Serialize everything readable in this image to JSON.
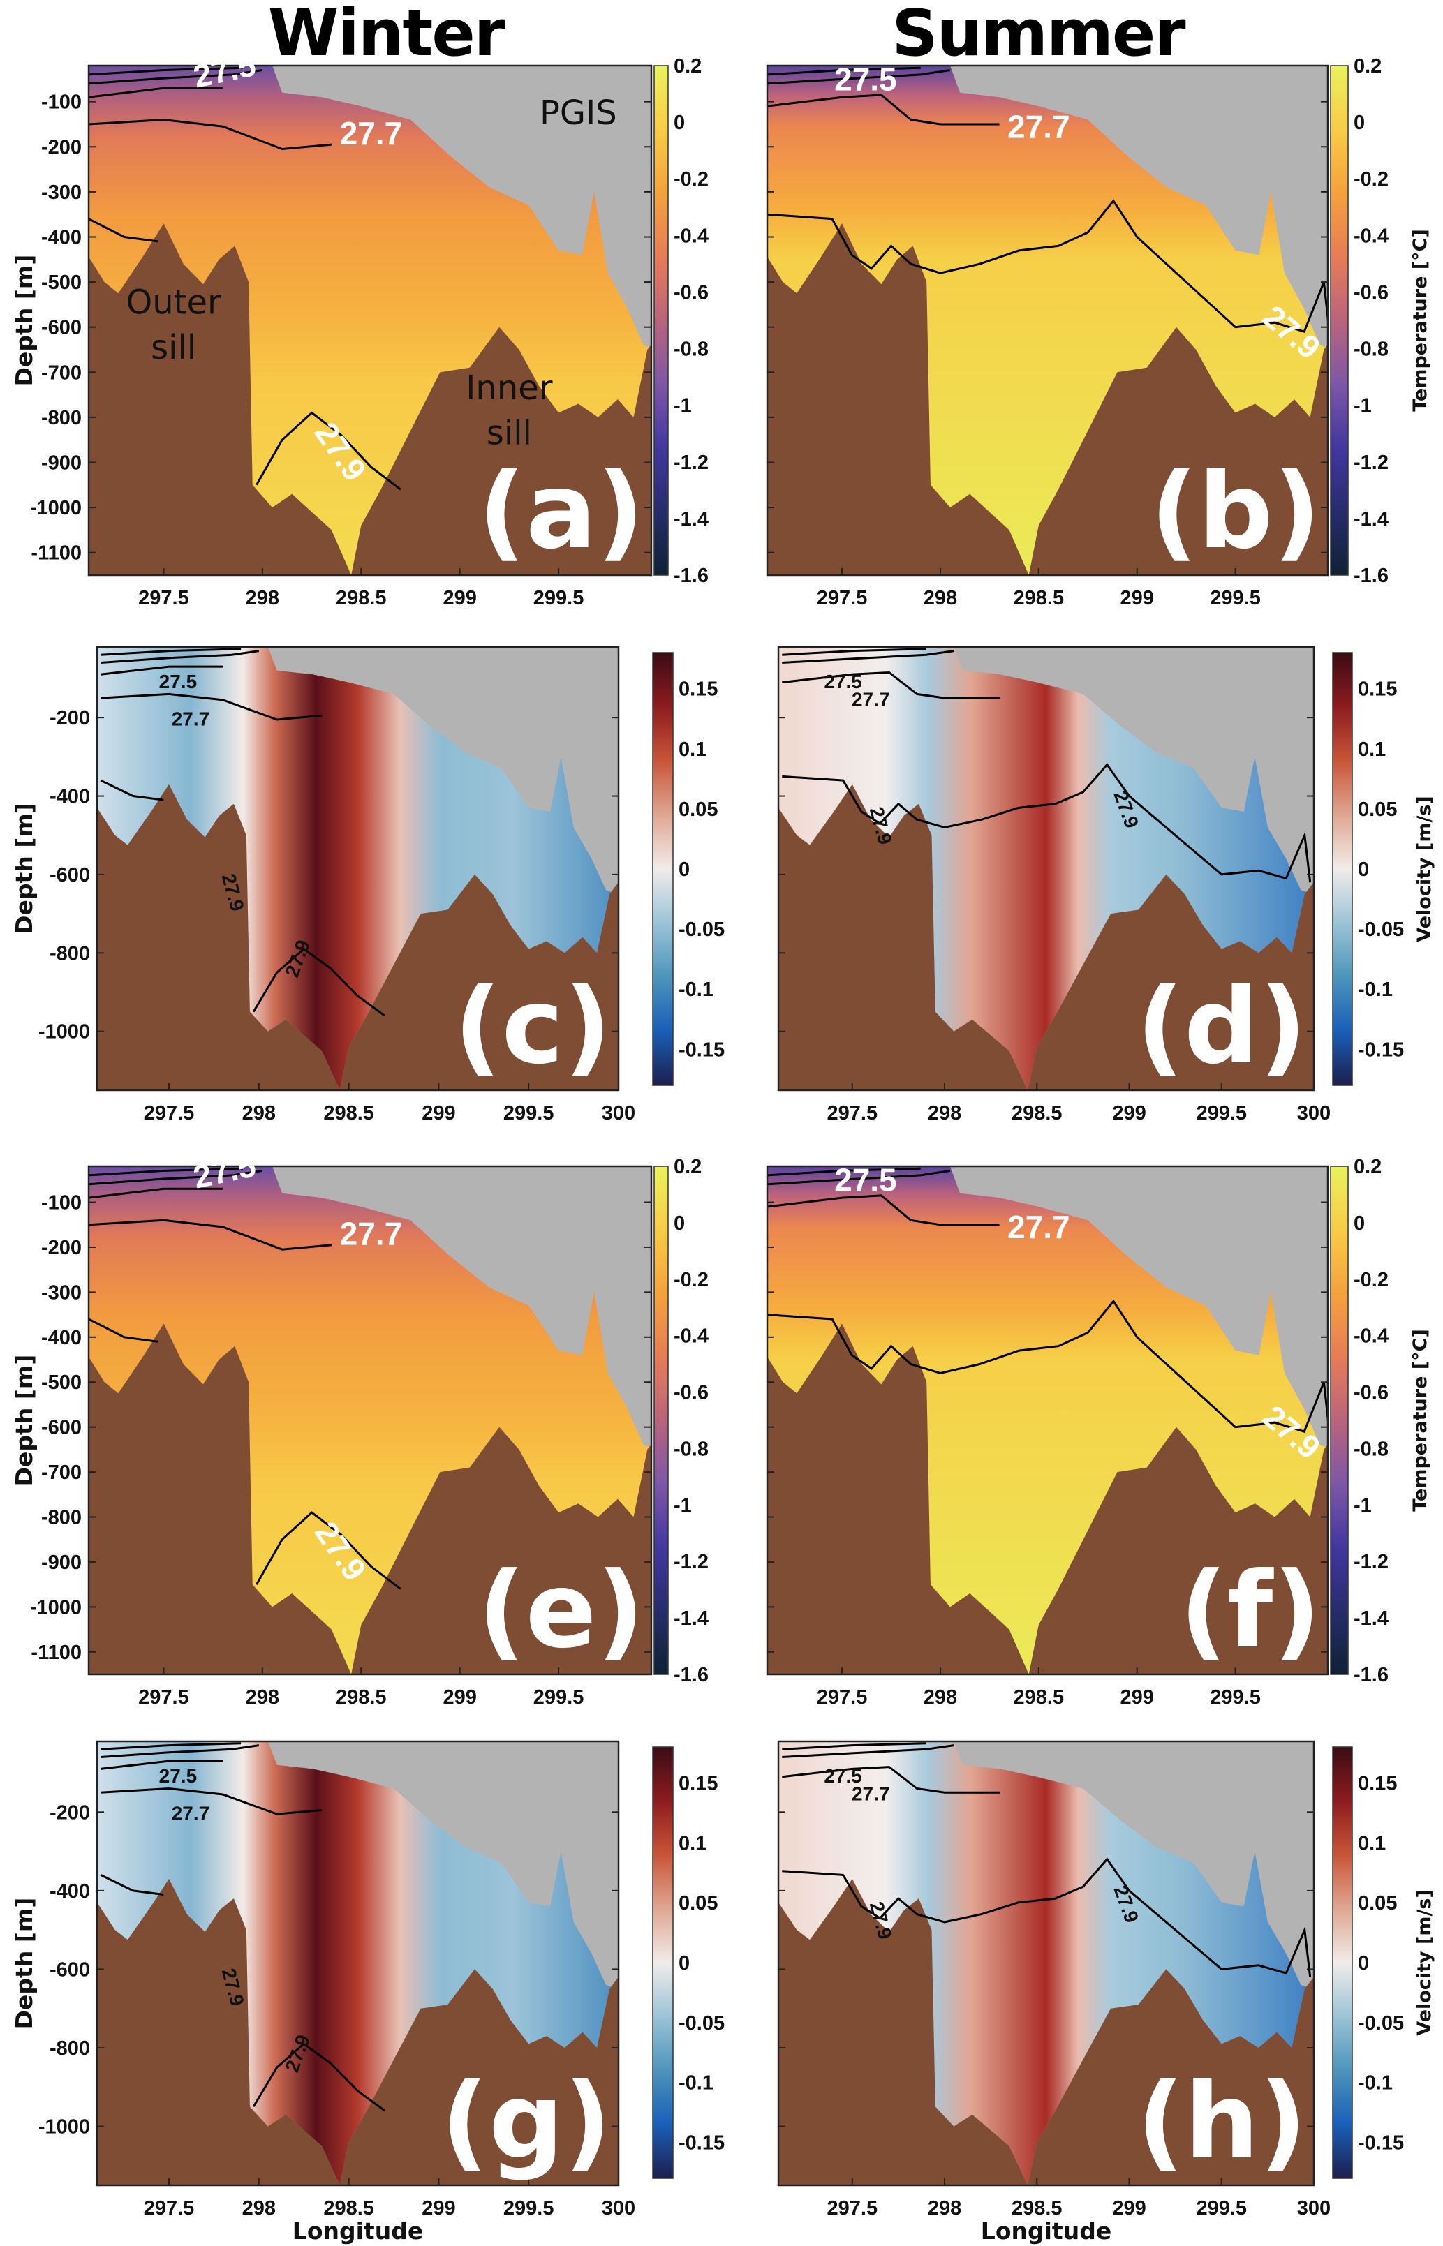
{
  "columns": {
    "winter": "Winter",
    "summer": "Summer"
  },
  "chart_data": [
    {
      "type": "heatmap",
      "panel": "(a)",
      "season": "winter",
      "variable": "temperature",
      "ylabel": "Depth [m]",
      "xlabel": "",
      "colorbar_label": "",
      "clim": [
        -1.6,
        0.2
      ],
      "xlim": [
        297.12,
        299.97
      ],
      "ylim": [
        -1150,
        -20
      ],
      "xticks": [
        "297.5",
        "298",
        "298.5",
        "299",
        "299.5"
      ],
      "yticks": [
        "-100",
        "-200",
        "-300",
        "-400",
        "-500",
        "-600",
        "-700",
        "-800",
        "-900",
        "-1000",
        "-1100"
      ],
      "cbticks": [
        "0.2",
        "0",
        "-0.2",
        "-0.4",
        "-0.6",
        "-0.8",
        "-1",
        "-1.2",
        "-1.4",
        "-1.6"
      ],
      "contour_labels": [
        "27.5",
        "27.7",
        "27.9"
      ],
      "annotations": [
        "PGIS",
        "Outer",
        "sill",
        "Inner",
        "sill"
      ]
    },
    {
      "type": "heatmap",
      "panel": "(b)",
      "season": "summer",
      "variable": "temperature",
      "ylabel": "",
      "xlabel": "",
      "colorbar_label": "Temperature [°C]",
      "clim": [
        -1.6,
        0.2
      ],
      "xlim": [
        297.12,
        299.97
      ],
      "ylim": [
        -1150,
        -20
      ],
      "xticks": [
        "297.5",
        "298",
        "298.5",
        "299",
        "299.5"
      ],
      "yticks": [],
      "cbticks": [
        "0.2",
        "0",
        "-0.2",
        "-0.4",
        "-0.6",
        "-0.8",
        "-1",
        "-1.2",
        "-1.4",
        "-1.6"
      ],
      "contour_labels": [
        "27.5",
        "27.7",
        "27.9"
      ],
      "annotations": []
    },
    {
      "type": "heatmap",
      "panel": "(c)",
      "season": "winter",
      "variable": "velocity",
      "ylabel": "Depth [m]",
      "xlabel": "",
      "colorbar_label": "",
      "clim": [
        -0.18,
        0.18
      ],
      "xlim": [
        297.1,
        300
      ],
      "ylim": [
        -1150,
        -20
      ],
      "xticks": [
        "297.5",
        "298",
        "298.5",
        "299",
        "299.5",
        "300"
      ],
      "yticks": [
        "-200",
        "-400",
        "-600",
        "-800",
        "-1000"
      ],
      "cbticks": [
        "0.15",
        "0.1",
        "0.05",
        "0",
        "-0.05",
        "-0.1",
        "-0.15"
      ],
      "contour_labels": [
        "27.5",
        "27.7",
        "27.9",
        "27.9"
      ],
      "annotations": []
    },
    {
      "type": "heatmap",
      "panel": "(d)",
      "season": "summer",
      "variable": "velocity",
      "ylabel": "",
      "xlabel": "",
      "colorbar_label": "Velocity [m/s]",
      "clim": [
        -0.18,
        0.18
      ],
      "xlim": [
        297.1,
        300
      ],
      "ylim": [
        -1150,
        -20
      ],
      "xticks": [
        "297.5",
        "298",
        "298.5",
        "299",
        "299.5",
        "300"
      ],
      "yticks": [],
      "cbticks": [
        "0.15",
        "0.1",
        "0.05",
        "0",
        "-0.05",
        "-0.1",
        "-0.15"
      ],
      "contour_labels": [
        "27.5",
        "27.7",
        "27.9",
        "27.9"
      ],
      "annotations": []
    },
    {
      "type": "heatmap",
      "panel": "(e)",
      "season": "winter",
      "variable": "temperature",
      "ylabel": "Depth [m]",
      "xlabel": "",
      "colorbar_label": "",
      "clim": [
        -1.6,
        0.2
      ],
      "xlim": [
        297.12,
        299.97
      ],
      "ylim": [
        -1150,
        -20
      ],
      "xticks": [
        "297.5",
        "298",
        "298.5",
        "299",
        "299.5"
      ],
      "yticks": [
        "-100",
        "-200",
        "-300",
        "-400",
        "-500",
        "-600",
        "-700",
        "-800",
        "-900",
        "-1000",
        "-1100"
      ],
      "cbticks": [
        "0.2",
        "0",
        "-0.2",
        "-0.4",
        "-0.6",
        "-0.8",
        "-1",
        "-1.2",
        "-1.4",
        "-1.6"
      ],
      "contour_labels": [
        "27.5",
        "27.7",
        "27.9"
      ],
      "annotations": []
    },
    {
      "type": "heatmap",
      "panel": "(f)",
      "season": "summer",
      "variable": "temperature",
      "ylabel": "",
      "xlabel": "",
      "colorbar_label": "Temperature [°C]",
      "clim": [
        -1.6,
        0.2
      ],
      "xlim": [
        297.12,
        299.97
      ],
      "ylim": [
        -1150,
        -20
      ],
      "xticks": [
        "297.5",
        "298",
        "298.5",
        "299",
        "299.5"
      ],
      "yticks": [],
      "cbticks": [
        "0.2",
        "0",
        "-0.2",
        "-0.4",
        "-0.6",
        "-0.8",
        "-1",
        "-1.2",
        "-1.4",
        "-1.6"
      ],
      "contour_labels": [
        "27.5",
        "27.7",
        "27.9"
      ],
      "annotations": []
    },
    {
      "type": "heatmap",
      "panel": "(g)",
      "season": "winter",
      "variable": "velocity",
      "ylabel": "Depth [m]",
      "xlabel": "Longitude",
      "colorbar_label": "",
      "clim": [
        -0.18,
        0.18
      ],
      "xlim": [
        297.1,
        300
      ],
      "ylim": [
        -1150,
        -20
      ],
      "xticks": [
        "297.5",
        "298",
        "298.5",
        "299",
        "299.5",
        "300"
      ],
      "yticks": [
        "-200",
        "-400",
        "-600",
        "-800",
        "-1000"
      ],
      "cbticks": [
        "0.15",
        "0.1",
        "0.05",
        "0",
        "-0.05",
        "-0.1",
        "-0.15"
      ],
      "contour_labels": [
        "27.5",
        "27.7",
        "27.9",
        "27.9"
      ],
      "annotations": []
    },
    {
      "type": "heatmap",
      "panel": "(h)",
      "season": "summer",
      "variable": "velocity",
      "ylabel": "",
      "xlabel": "Longitude",
      "colorbar_label": "Velocity [m/s]",
      "clim": [
        -0.18,
        0.18
      ],
      "xlim": [
        297.1,
        300
      ],
      "ylim": [
        -1150,
        -20
      ],
      "xticks": [
        "297.5",
        "298",
        "298.5",
        "299",
        "299.5",
        "300"
      ],
      "yticks": [],
      "cbticks": [
        "0.15",
        "0.1",
        "0.05",
        "0",
        "-0.05",
        "-0.1",
        "-0.15"
      ],
      "contour_labels": [
        "27.5",
        "27.7",
        "27.9",
        "27.9"
      ],
      "annotations": []
    }
  ],
  "profiles": {
    "bathymetry": [
      [
        297.1,
        -430
      ],
      [
        297.2,
        -500
      ],
      [
        297.27,
        -525
      ],
      [
        297.4,
        -440
      ],
      [
        297.5,
        -370
      ],
      [
        297.6,
        -460
      ],
      [
        297.7,
        -505
      ],
      [
        297.78,
        -450
      ],
      [
        297.86,
        -420
      ],
      [
        297.93,
        -500
      ],
      [
        297.95,
        -950
      ],
      [
        298.05,
        -1000
      ],
      [
        298.15,
        -970
      ],
      [
        298.25,
        -1010
      ],
      [
        298.35,
        -1050
      ],
      [
        298.45,
        -1150
      ],
      [
        298.5,
        -1040
      ],
      [
        298.6,
        -960
      ],
      [
        298.75,
        -830
      ],
      [
        298.9,
        -700
      ],
      [
        299.05,
        -690
      ],
      [
        299.2,
        -600
      ],
      [
        299.3,
        -650
      ],
      [
        299.4,
        -730
      ],
      [
        299.5,
        -790
      ],
      [
        299.6,
        -770
      ],
      [
        299.7,
        -800
      ],
      [
        299.8,
        -760
      ],
      [
        299.88,
        -800
      ],
      [
        299.95,
        -650
      ],
      [
        300,
        -620
      ]
    ],
    "ice_draft": [
      [
        297.1,
        -20
      ],
      [
        298.05,
        -20
      ],
      [
        298.1,
        -80
      ],
      [
        298.3,
        -90
      ],
      [
        298.5,
        -110
      ],
      [
        298.75,
        -140
      ],
      [
        298.95,
        -220
      ],
      [
        299.15,
        -290
      ],
      [
        299.35,
        -330
      ],
      [
        299.5,
        -430
      ],
      [
        299.62,
        -440
      ],
      [
        299.68,
        -300
      ],
      [
        299.75,
        -480
      ],
      [
        299.85,
        -560
      ],
      [
        299.93,
        -640
      ],
      [
        300,
        -650
      ]
    ]
  },
  "contours": {
    "winter": [
      [
        [
          297.12,
          -40
        ],
        [
          297.5,
          -30
        ],
        [
          297.9,
          -25
        ]
      ],
      [
        [
          297.12,
          -60
        ],
        [
          297.5,
          -48
        ],
        [
          297.85,
          -40
        ],
        [
          298.0,
          -30
        ]
      ],
      [
        [
          297.12,
          -90
        ],
        [
          297.5,
          -70
        ],
        [
          297.8,
          -70
        ]
      ],
      [
        [
          297.12,
          -150
        ],
        [
          297.5,
          -140
        ],
        [
          297.8,
          -155
        ],
        [
          298.1,
          -205
        ],
        [
          298.35,
          -195
        ]
      ],
      [
        [
          297.12,
          -360
        ],
        [
          297.3,
          -400
        ],
        [
          297.47,
          -410
        ]
      ],
      [
        [
          297.97,
          -950
        ],
        [
          298.1,
          -850
        ],
        [
          298.25,
          -790
        ],
        [
          298.4,
          -840
        ],
        [
          298.55,
          -910
        ],
        [
          298.7,
          -960
        ]
      ]
    ],
    "summer": [
      [
        [
          297.12,
          -40
        ],
        [
          297.5,
          -30
        ],
        [
          297.9,
          -25
        ]
      ],
      [
        [
          297.12,
          -60
        ],
        [
          297.5,
          -50
        ],
        [
          297.9,
          -40
        ],
        [
          298.05,
          -30
        ]
      ],
      [
        [
          297.12,
          -110
        ],
        [
          297.5,
          -90
        ],
        [
          297.7,
          -85
        ],
        [
          297.85,
          -140
        ],
        [
          298.0,
          -150
        ],
        [
          298.3,
          -150
        ]
      ],
      [
        [
          297.12,
          -350
        ],
        [
          297.45,
          -360
        ],
        [
          297.55,
          -440
        ],
        [
          297.65,
          -470
        ],
        [
          297.75,
          -420
        ],
        [
          297.85,
          -460
        ],
        [
          298.0,
          -480
        ],
        [
          298.2,
          -460
        ],
        [
          298.4,
          -430
        ],
        [
          298.6,
          -420
        ],
        [
          298.75,
          -390
        ],
        [
          298.88,
          -320
        ],
        [
          299.0,
          -400
        ],
        [
          299.2,
          -480
        ],
        [
          299.4,
          -560
        ],
        [
          299.5,
          -600
        ],
        [
          299.7,
          -590
        ],
        [
          299.85,
          -610
        ],
        [
          299.95,
          -500
        ],
        [
          299.98,
          -620
        ]
      ]
    ]
  },
  "colors": {
    "ice": "#b3b3b3",
    "bathy": "#7f4d33",
    "temp_scale": [
      "#e9f25c",
      "#f8cc46",
      "#f4a23c",
      "#e77c56",
      "#b9647c",
      "#7d57a6",
      "#4337a0",
      "#262d6c",
      "#0e2233"
    ],
    "vel_scale": [
      "#3a0c15",
      "#8c1c20",
      "#c95538",
      "#dfa692",
      "#f1ecea",
      "#9cc3d6",
      "#4d94bb",
      "#1a5fb8",
      "#1d1e4e"
    ]
  }
}
